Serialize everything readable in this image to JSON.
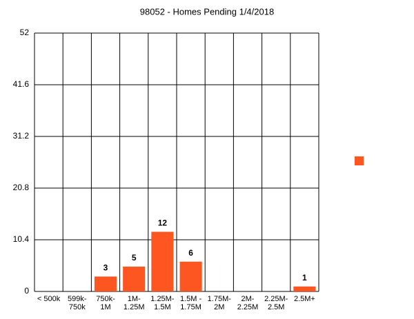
{
  "chart_data": {
    "type": "bar",
    "title": "98052 - Homes Pending 1/4/2018",
    "categories": [
      "< 500k",
      "599k-\n750k",
      "750k-\n1M",
      "1M-\n1.25M",
      "1.25M-\n1.5M",
      "1.5M -\n1.75M",
      "1.75M-\n2M",
      "2M-\n2.25M",
      "2.25M-\n2.5M",
      "2.5M+"
    ],
    "values": [
      0,
      0,
      3,
      5,
      12,
      6,
      0,
      0,
      0,
      1
    ],
    "color": "#fd5621",
    "ylim": [
      0,
      52
    ],
    "yticks": [
      0,
      10.4,
      20.8,
      31.2,
      41.6,
      52
    ],
    "grid": true
  }
}
